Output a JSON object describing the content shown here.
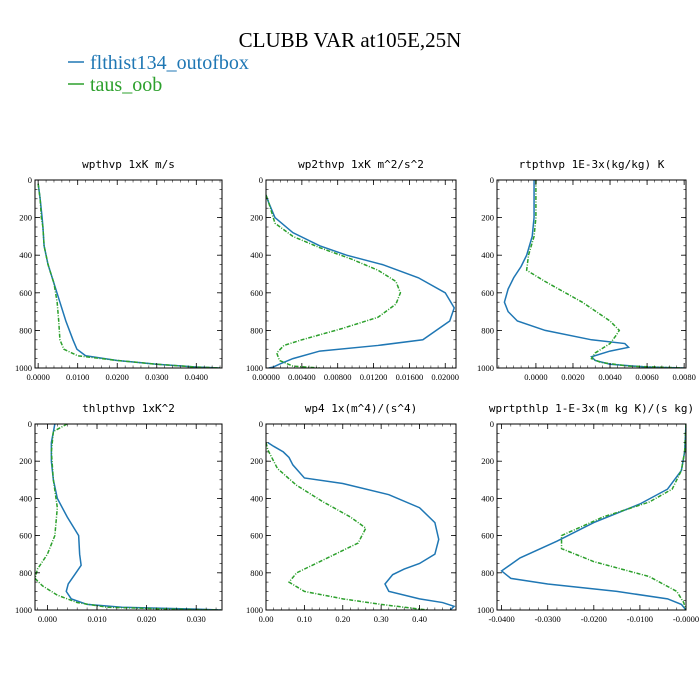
{
  "figure": {
    "title": "CLUBB VAR at105E,25N",
    "legend": [
      {
        "name": "flthist134_outofbox",
        "color": "#1f77b4"
      },
      {
        "name": "taus_oob",
        "color": "#2ca02c"
      }
    ]
  },
  "chart_data": [
    {
      "type": "line",
      "title": "wpthvp   1xK m/s",
      "xlim": [
        -0.0008,
        0.0465
      ],
      "ylim": [
        1000,
        0
      ],
      "xticks": [
        0.0,
        0.01,
        0.02,
        0.03,
        0.04
      ],
      "xtick_labels": [
        "0.0000",
        "0.0100",
        "0.0200",
        "0.0300",
        "0.0400"
      ],
      "yticks": [
        0,
        200,
        400,
        600,
        800,
        1000
      ],
      "ytick_labels": [
        "0",
        "200",
        "400",
        "600",
        "800",
        "1000"
      ],
      "series": [
        {
          "name": "flthist134_outofbox",
          "color": "#1f77b4",
          "dashed": false,
          "x": [
            0.0,
            0.0005,
            0.001,
            0.0012,
            0.0015,
            0.0025,
            0.004,
            0.0055,
            0.007,
            0.0088,
            0.0098,
            0.012,
            0.02,
            0.03,
            0.04,
            0.046
          ],
          "y": [
            20,
            100,
            200,
            250,
            350,
            450,
            550,
            650,
            750,
            850,
            900,
            935,
            960,
            980,
            995,
            1000
          ]
        },
        {
          "name": "taus_oob",
          "color": "#2ca02c",
          "dashed": true,
          "x": [
            0.0,
            0.0005,
            0.0008,
            0.0012,
            0.0015,
            0.0025,
            0.004,
            0.0048,
            0.0052,
            0.0055,
            0.0065,
            0.01,
            0.02,
            0.03,
            0.04,
            0.0465
          ],
          "y": [
            20,
            100,
            200,
            250,
            350,
            450,
            550,
            650,
            750,
            850,
            900,
            935,
            960,
            980,
            995,
            1000
          ]
        }
      ]
    },
    {
      "type": "line",
      "title": "wp2thvp   1xK m^2/s^2",
      "xlim": [
        0.0,
        0.0212
      ],
      "ylim": [
        1000,
        0
      ],
      "xticks": [
        0.0,
        0.004,
        0.008,
        0.012,
        0.016,
        0.02
      ],
      "xtick_labels": [
        "0.00000",
        "0.00400",
        "0.00800",
        "0.01200",
        "0.01600",
        "0.02000"
      ],
      "yticks": [
        0,
        200,
        400,
        600,
        800,
        1000
      ],
      "ytick_labels": [
        "0",
        "200",
        "400",
        "600",
        "800",
        "1000"
      ],
      "series": [
        {
          "name": "flthist134_outofbox",
          "color": "#1f77b4",
          "dashed": false,
          "x": [
            0.0,
            0.0003,
            0.001,
            0.003,
            0.006,
            0.009,
            0.013,
            0.017,
            0.02,
            0.021,
            0.0205,
            0.019,
            0.0175,
            0.0125,
            0.006,
            0.003,
            0.0015,
            0.0008,
            0.0003
          ],
          "y": [
            80,
            120,
            200,
            280,
            350,
            400,
            450,
            520,
            600,
            680,
            750,
            800,
            850,
            880,
            910,
            950,
            980,
            995,
            1000
          ]
        },
        {
          "name": "taus_oob",
          "color": "#2ca02c",
          "dashed": true,
          "x": [
            0.0,
            0.0003,
            0.001,
            0.003,
            0.006,
            0.0095,
            0.0125,
            0.0145,
            0.015,
            0.0145,
            0.0125,
            0.0085,
            0.004,
            0.002,
            0.0012,
            0.0015,
            0.003,
            0.006
          ],
          "y": [
            80,
            120,
            230,
            300,
            360,
            420,
            480,
            540,
            600,
            660,
            730,
            790,
            850,
            880,
            920,
            960,
            990,
            1000
          ]
        }
      ]
    },
    {
      "type": "line",
      "title": "rtpthvp   1E-3x(kg/kg) K",
      "xlim": [
        -0.0021,
        0.0081
      ],
      "ylim": [
        1000,
        0
      ],
      "xticks": [
        0.0,
        0.002,
        0.004,
        0.006,
        0.008
      ],
      "xtick_labels": [
        "0.0000",
        "0.0020",
        "0.0040",
        "0.0060",
        "0.0080"
      ],
      "yticks": [
        0,
        200,
        400,
        600,
        800,
        1000
      ],
      "ytick_labels": [
        "0",
        "200",
        "400",
        "600",
        "800",
        "1000"
      ],
      "series": [
        {
          "name": "flthist134_outofbox",
          "color": "#1f77b4",
          "dashed": false,
          "x": [
            -0.0001,
            -0.0001,
            -0.0002,
            -0.0005,
            -0.0008,
            -0.0012,
            -0.0015,
            -0.0017,
            -0.0015,
            -0.001,
            0.0005,
            0.003,
            0.0048,
            0.005,
            0.004,
            0.003,
            0.0032,
            0.004,
            0.006,
            0.008
          ],
          "y": [
            0,
            200,
            300,
            400,
            460,
            520,
            580,
            650,
            700,
            750,
            800,
            850,
            870,
            890,
            910,
            940,
            960,
            980,
            995,
            1000
          ]
        },
        {
          "name": "taus_oob",
          "color": "#2ca02c",
          "dashed": true,
          "x": [
            0.0,
            0.0,
            -0.0001,
            -0.0004,
            -0.0005,
            0.0005,
            0.0025,
            0.004,
            0.0045,
            0.0043,
            0.004,
            0.0032,
            0.003,
            0.0035,
            0.005,
            0.008
          ],
          "y": [
            0,
            200,
            300,
            400,
            480,
            540,
            650,
            750,
            800,
            830,
            870,
            920,
            950,
            970,
            990,
            1000
          ]
        }
      ]
    },
    {
      "type": "line",
      "title": "thlpthvp   1xK^2",
      "xlim": [
        -0.0025,
        0.0352
      ],
      "ylim": [
        1000,
        0
      ],
      "xticks": [
        0.0,
        0.01,
        0.02,
        0.03
      ],
      "xtick_labels": [
        "0.000",
        "0.010",
        "0.020",
        "0.030"
      ],
      "yticks": [
        0,
        200,
        400,
        600,
        800,
        1000
      ],
      "ytick_labels": [
        "0",
        "200",
        "400",
        "600",
        "800",
        "1000"
      ],
      "series": [
        {
          "name": "flthist134_outofbox",
          "color": "#1f77b4",
          "dashed": false,
          "x": [
            0.0015,
            0.0008,
            0.0008,
            0.0012,
            0.002,
            0.004,
            0.0063,
            0.0065,
            0.0068,
            0.0055,
            0.0042,
            0.0038,
            0.0048,
            0.008,
            0.015,
            0.03,
            0.035
          ],
          "y": [
            0,
            100,
            200,
            300,
            400,
            500,
            600,
            700,
            760,
            810,
            860,
            900,
            940,
            970,
            985,
            995,
            1000
          ]
        },
        {
          "name": "taus_oob",
          "color": "#2ca02c",
          "dashed": true,
          "x": [
            0.004,
            0.0012,
            0.0008,
            0.0012,
            0.002,
            0.0015,
            0.0,
            -0.002,
            -0.0025,
            -0.001,
            0.002,
            0.006,
            0.012,
            0.025,
            0.035
          ],
          "y": [
            0,
            40,
            150,
            300,
            450,
            600,
            700,
            780,
            830,
            870,
            920,
            960,
            985,
            995,
            1000
          ]
        }
      ]
    },
    {
      "type": "line",
      "title": "wp4   1x(m^4)/(s^4)",
      "xlim": [
        0.0,
        0.495
      ],
      "ylim": [
        1000,
        0
      ],
      "xticks": [
        0.0,
        0.1,
        0.2,
        0.3,
        0.4
      ],
      "xtick_labels": [
        "0.00",
        "0.10",
        "0.20",
        "0.30",
        "0.40"
      ],
      "yticks": [
        0,
        200,
        400,
        600,
        800,
        1000
      ],
      "ytick_labels": [
        "0",
        "200",
        "400",
        "600",
        "800",
        "1000"
      ],
      "series": [
        {
          "name": "flthist134_outofbox",
          "color": "#1f77b4",
          "dashed": false,
          "x": [
            0.005,
            0.02,
            0.045,
            0.06,
            0.07,
            0.1,
            0.2,
            0.32,
            0.4,
            0.44,
            0.45,
            0.44,
            0.4,
            0.36,
            0.33,
            0.31,
            0.32,
            0.4,
            0.46,
            0.49,
            0.48
          ],
          "y": [
            100,
            120,
            150,
            180,
            220,
            290,
            320,
            380,
            450,
            530,
            620,
            700,
            750,
            780,
            810,
            860,
            900,
            940,
            960,
            980,
            1000
          ]
        },
        {
          "name": "taus_oob",
          "color": "#2ca02c",
          "dashed": true,
          "x": [
            0.0,
            0.005,
            0.03,
            0.08,
            0.15,
            0.22,
            0.26,
            0.24,
            0.16,
            0.08,
            0.06,
            0.1,
            0.2,
            0.3,
            0.38,
            0.42
          ],
          "y": [
            100,
            140,
            240,
            330,
            420,
            500,
            560,
            640,
            720,
            800,
            850,
            900,
            940,
            970,
            990,
            1000
          ]
        }
      ]
    },
    {
      "type": "line",
      "title": "wprtpthlp   1-E-3x(m kg K)/(s kg)",
      "xlim": [
        -0.041,
        0.0
      ],
      "ylim": [
        1000,
        0
      ],
      "xticks": [
        -0.04,
        -0.03,
        -0.02,
        -0.01,
        0.0
      ],
      "xtick_labels": [
        "-0.0400",
        "-0.0300",
        "-0.0200",
        "-0.0100",
        "-0.0000"
      ],
      "yticks": [
        0,
        200,
        400,
        600,
        800,
        1000
      ],
      "ytick_labels": [
        "0",
        "200",
        "400",
        "600",
        "800",
        "1000"
      ],
      "series": [
        {
          "name": "flthist134_outofbox",
          "color": "#1f77b4",
          "dashed": false,
          "x": [
            0.0,
            -0.0003,
            -0.001,
            -0.004,
            -0.01,
            -0.02,
            -0.028,
            -0.036,
            -0.04,
            -0.038,
            -0.03,
            -0.015,
            -0.004,
            -0.001,
            0.0
          ],
          "y": [
            0,
            150,
            250,
            350,
            430,
            530,
            630,
            720,
            790,
            830,
            860,
            900,
            940,
            970,
            1000
          ]
        },
        {
          "name": "taus_oob",
          "color": "#2ca02c",
          "dashed": true,
          "x": [
            0.0,
            -0.0003,
            -0.001,
            -0.003,
            -0.008,
            -0.018,
            -0.027,
            -0.027,
            -0.02,
            -0.008,
            -0.002,
            -0.0005,
            0.0
          ],
          "y": [
            0,
            150,
            250,
            350,
            420,
            500,
            600,
            670,
            740,
            820,
            900,
            960,
            1000
          ]
        }
      ]
    }
  ]
}
